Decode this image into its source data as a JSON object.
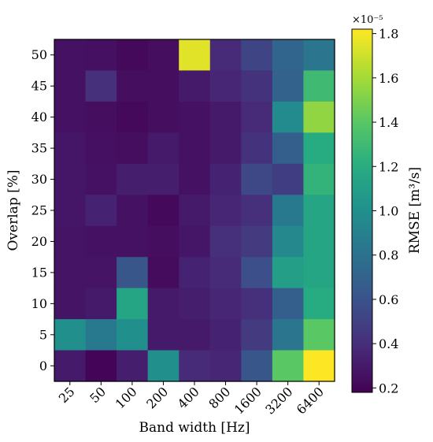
{
  "chart_data": {
    "type": "heatmap",
    "xlabel": "Band width [Hz]",
    "ylabel": "Overlap [%]",
    "x_categories": [
      "25",
      "50",
      "100",
      "200",
      "400",
      "800",
      "1600",
      "3200",
      "6400"
    ],
    "y_categories": [
      "50",
      "45",
      "40",
      "35",
      "30",
      "25",
      "20",
      "15",
      "10",
      "5",
      "0"
    ],
    "values": [
      [
        0.26,
        0.25,
        0.22,
        0.24,
        1.75,
        0.38,
        0.52,
        0.72,
        0.82
      ],
      [
        0.26,
        0.4,
        0.24,
        0.24,
        0.3,
        0.36,
        0.42,
        0.7,
        1.3
      ],
      [
        0.26,
        0.24,
        0.22,
        0.24,
        0.26,
        0.3,
        0.38,
        0.96,
        1.55
      ],
      [
        0.28,
        0.25,
        0.24,
        0.3,
        0.26,
        0.3,
        0.42,
        0.68,
        1.2
      ],
      [
        0.28,
        0.26,
        0.32,
        0.32,
        0.26,
        0.34,
        0.54,
        0.48,
        1.25
      ],
      [
        0.28,
        0.34,
        0.26,
        0.22,
        0.3,
        0.36,
        0.4,
        0.85,
        1.15
      ],
      [
        0.27,
        0.26,
        0.26,
        0.24,
        0.28,
        0.4,
        0.46,
        0.95,
        1.15
      ],
      [
        0.27,
        0.27,
        0.62,
        0.23,
        0.34,
        0.38,
        0.58,
        1.1,
        1.15
      ],
      [
        0.27,
        0.3,
        1.15,
        0.3,
        0.32,
        0.36,
        0.4,
        0.68,
        1.2
      ],
      [
        1.0,
        0.85,
        1.0,
        0.3,
        0.3,
        0.34,
        0.46,
        0.82,
        1.4
      ],
      [
        0.3,
        0.2,
        0.32,
        1.0,
        0.38,
        0.36,
        0.62,
        1.4,
        1.82
      ]
    ],
    "colorbar": {
      "label": "RMSE [m³/s]",
      "exponent_label": "×10⁻⁵",
      "min": 0.18,
      "max": 1.82,
      "ticks": [
        "0.2",
        "0.4",
        "0.6",
        "0.8",
        "1.0",
        "1.2",
        "1.4",
        "1.6",
        "1.8"
      ],
      "tick_values": [
        0.2,
        0.4,
        0.6,
        0.8,
        1.0,
        1.2,
        1.4,
        1.6,
        1.8
      ],
      "colormap": "viridis"
    }
  }
}
